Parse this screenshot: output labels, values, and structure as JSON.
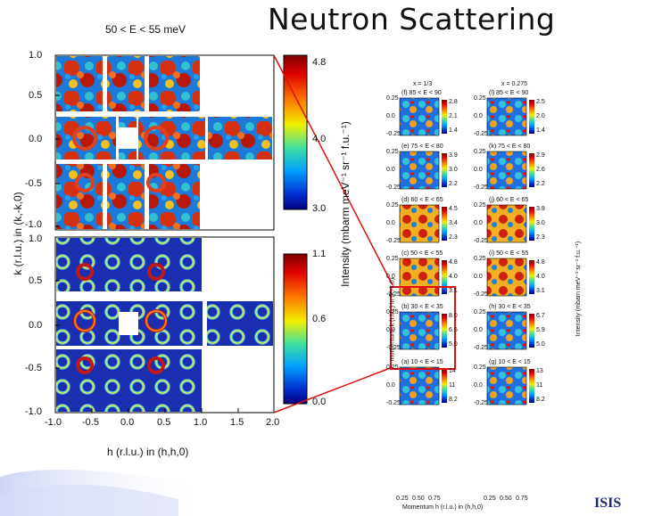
{
  "slide_title": "Neutron Scattering",
  "main_figure": {
    "top_panel_label": "50 < E < 55 meV",
    "y_axis_label": "k (r.l.u.) in (k,-k,0)",
    "x_axis_label": "h (r.l.u.) in (h,h,0)",
    "colorbar_label": "Intensity (mbarm meV⁻¹ sr⁻¹ f.u.⁻¹)",
    "y_ticks_top": [
      "1.0",
      "0.5",
      "0.0",
      "-0.5",
      "-1.0"
    ],
    "y_ticks_bottom": [
      "1.0",
      "0.5",
      "0.0",
      "-0.5",
      "-1.0"
    ],
    "x_ticks": [
      "-1.0",
      "-0.5",
      "0.0",
      "0.5",
      "1.0",
      "1.5",
      "2.0"
    ],
    "colorbar_top_ticks": [
      "4.8",
      "4.0",
      "3.0"
    ],
    "colorbar_bottom_ticks": [
      "1.1",
      "0.6",
      "0.0"
    ]
  },
  "small_figure": {
    "col1_header": "x = 1/3",
    "col2_header": "x = 0.275",
    "y_axis_label": "momentum, k (r.l.u.) in (k,-k,0)",
    "x_axis_label": "Momentum h (r.l.u.) in (h,h,0)",
    "colorbar_label": "Intensity (mbarn meV⁻¹ sr⁻¹ f.u.⁻¹)",
    "x_ticks": [
      "0.25",
      "0.50",
      "0.75"
    ],
    "y_ticks": [
      "0.25",
      "0.0",
      "-0.25"
    ],
    "rows": [
      {
        "left_label": "(f) 85 < E < 90",
        "right_label": "(l) 85 < E < 90",
        "left_ticks": [
          "2.8",
          "2.1",
          "1.4"
        ],
        "right_ticks": [
          "2.5",
          "2.0",
          "1.4"
        ]
      },
      {
        "left_label": "(e) 75 < E < 80",
        "right_label": "(k) 75 < E < 80",
        "left_ticks": [
          "3.9",
          "3.0",
          "2.2"
        ],
        "right_ticks": [
          "2.9",
          "2.6",
          "2.2"
        ]
      },
      {
        "left_label": "(d) 60 < E < 65",
        "right_label": "(j) 60 < E < 65",
        "left_ticks": [
          "4.5",
          "3.4",
          "2.3"
        ],
        "right_ticks": [
          "3.9",
          "3.0",
          "2.3"
        ]
      },
      {
        "left_label": "(c) 50 < E < 55",
        "right_label": "(i) 50 < E < 55",
        "left_ticks": [
          "4.8",
          "4.0",
          "3.1"
        ],
        "right_ticks": [
          "4.8",
          "4.0",
          "3.1"
        ]
      },
      {
        "left_label": "(b) 30 < E < 35",
        "right_label": "(h) 30 < E < 35",
        "left_ticks": [
          "8.0",
          "6.5",
          "5.0"
        ],
        "right_ticks": [
          "6.7",
          "5.9",
          "5.0"
        ]
      },
      {
        "left_label": "(a) 10 < E < 15",
        "right_label": "(g) 10 < E < 15",
        "left_ticks": [
          "14",
          "11",
          "8.2"
        ],
        "right_ticks": [
          "13",
          "11",
          "8.2"
        ]
      }
    ]
  },
  "logo_text": "ISIS"
}
